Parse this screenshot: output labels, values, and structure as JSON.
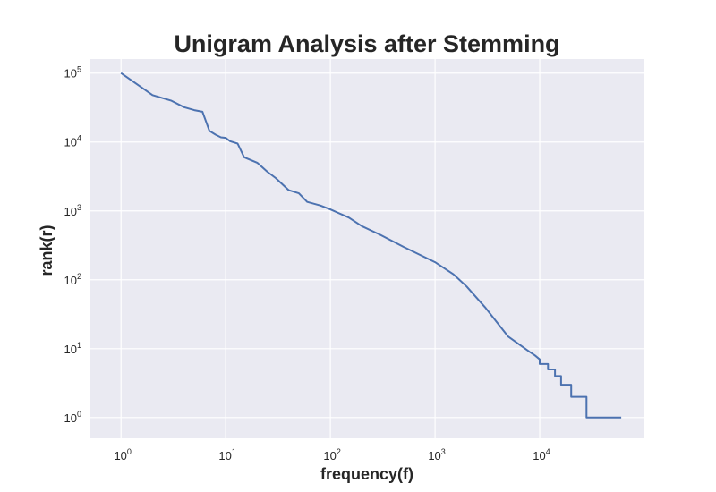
{
  "chart_data": {
    "type": "line",
    "title": "Unigram Analysis after Stemming",
    "xlabel": "frequency(f)",
    "ylabel": "rank(r)",
    "xscale": "log",
    "yscale": "log",
    "xlim": [
      0.5,
      100000
    ],
    "ylim": [
      0.5,
      160000
    ],
    "grid": true,
    "xticks": [
      {
        "base": "10",
        "exp": "0",
        "value": 1
      },
      {
        "base": "10",
        "exp": "1",
        "value": 10
      },
      {
        "base": "10",
        "exp": "2",
        "value": 100
      },
      {
        "base": "10",
        "exp": "3",
        "value": 1000
      },
      {
        "base": "10",
        "exp": "4",
        "value": 10000
      }
    ],
    "yticks": [
      {
        "base": "10",
        "exp": "0",
        "value": 1
      },
      {
        "base": "10",
        "exp": "1",
        "value": 10
      },
      {
        "base": "10",
        "exp": "2",
        "value": 100
      },
      {
        "base": "10",
        "exp": "3",
        "value": 1000
      },
      {
        "base": "10",
        "exp": "4",
        "value": 10000
      },
      {
        "base": "10",
        "exp": "5",
        "value": 100000
      }
    ],
    "series": [
      {
        "color": "#4c72b0",
        "x": [
          1,
          2,
          3,
          4,
          5,
          6,
          7,
          8,
          9,
          10,
          11,
          13,
          15,
          20,
          25,
          30,
          40,
          50,
          60,
          80,
          100,
          150,
          200,
          300,
          500,
          1000,
          1500,
          2000,
          3000,
          5000,
          8000,
          9000,
          10000,
          10000,
          11000,
          11000,
          12000,
          12000,
          14000,
          14000,
          16000,
          16000,
          20000,
          20000,
          28000,
          28000,
          60000
        ],
        "y": [
          100000,
          48000,
          40000,
          32000,
          29000,
          27500,
          14500,
          12800,
          11700,
          11500,
          10300,
          9500,
          6000,
          5000,
          3700,
          3000,
          2000,
          1800,
          1350,
          1200,
          1050,
          800,
          600,
          450,
          300,
          180,
          120,
          80,
          40,
          15,
          9,
          8,
          7,
          6,
          6,
          6,
          6,
          5,
          5,
          4,
          4,
          3,
          3,
          2,
          2,
          1,
          1
        ]
      }
    ]
  }
}
